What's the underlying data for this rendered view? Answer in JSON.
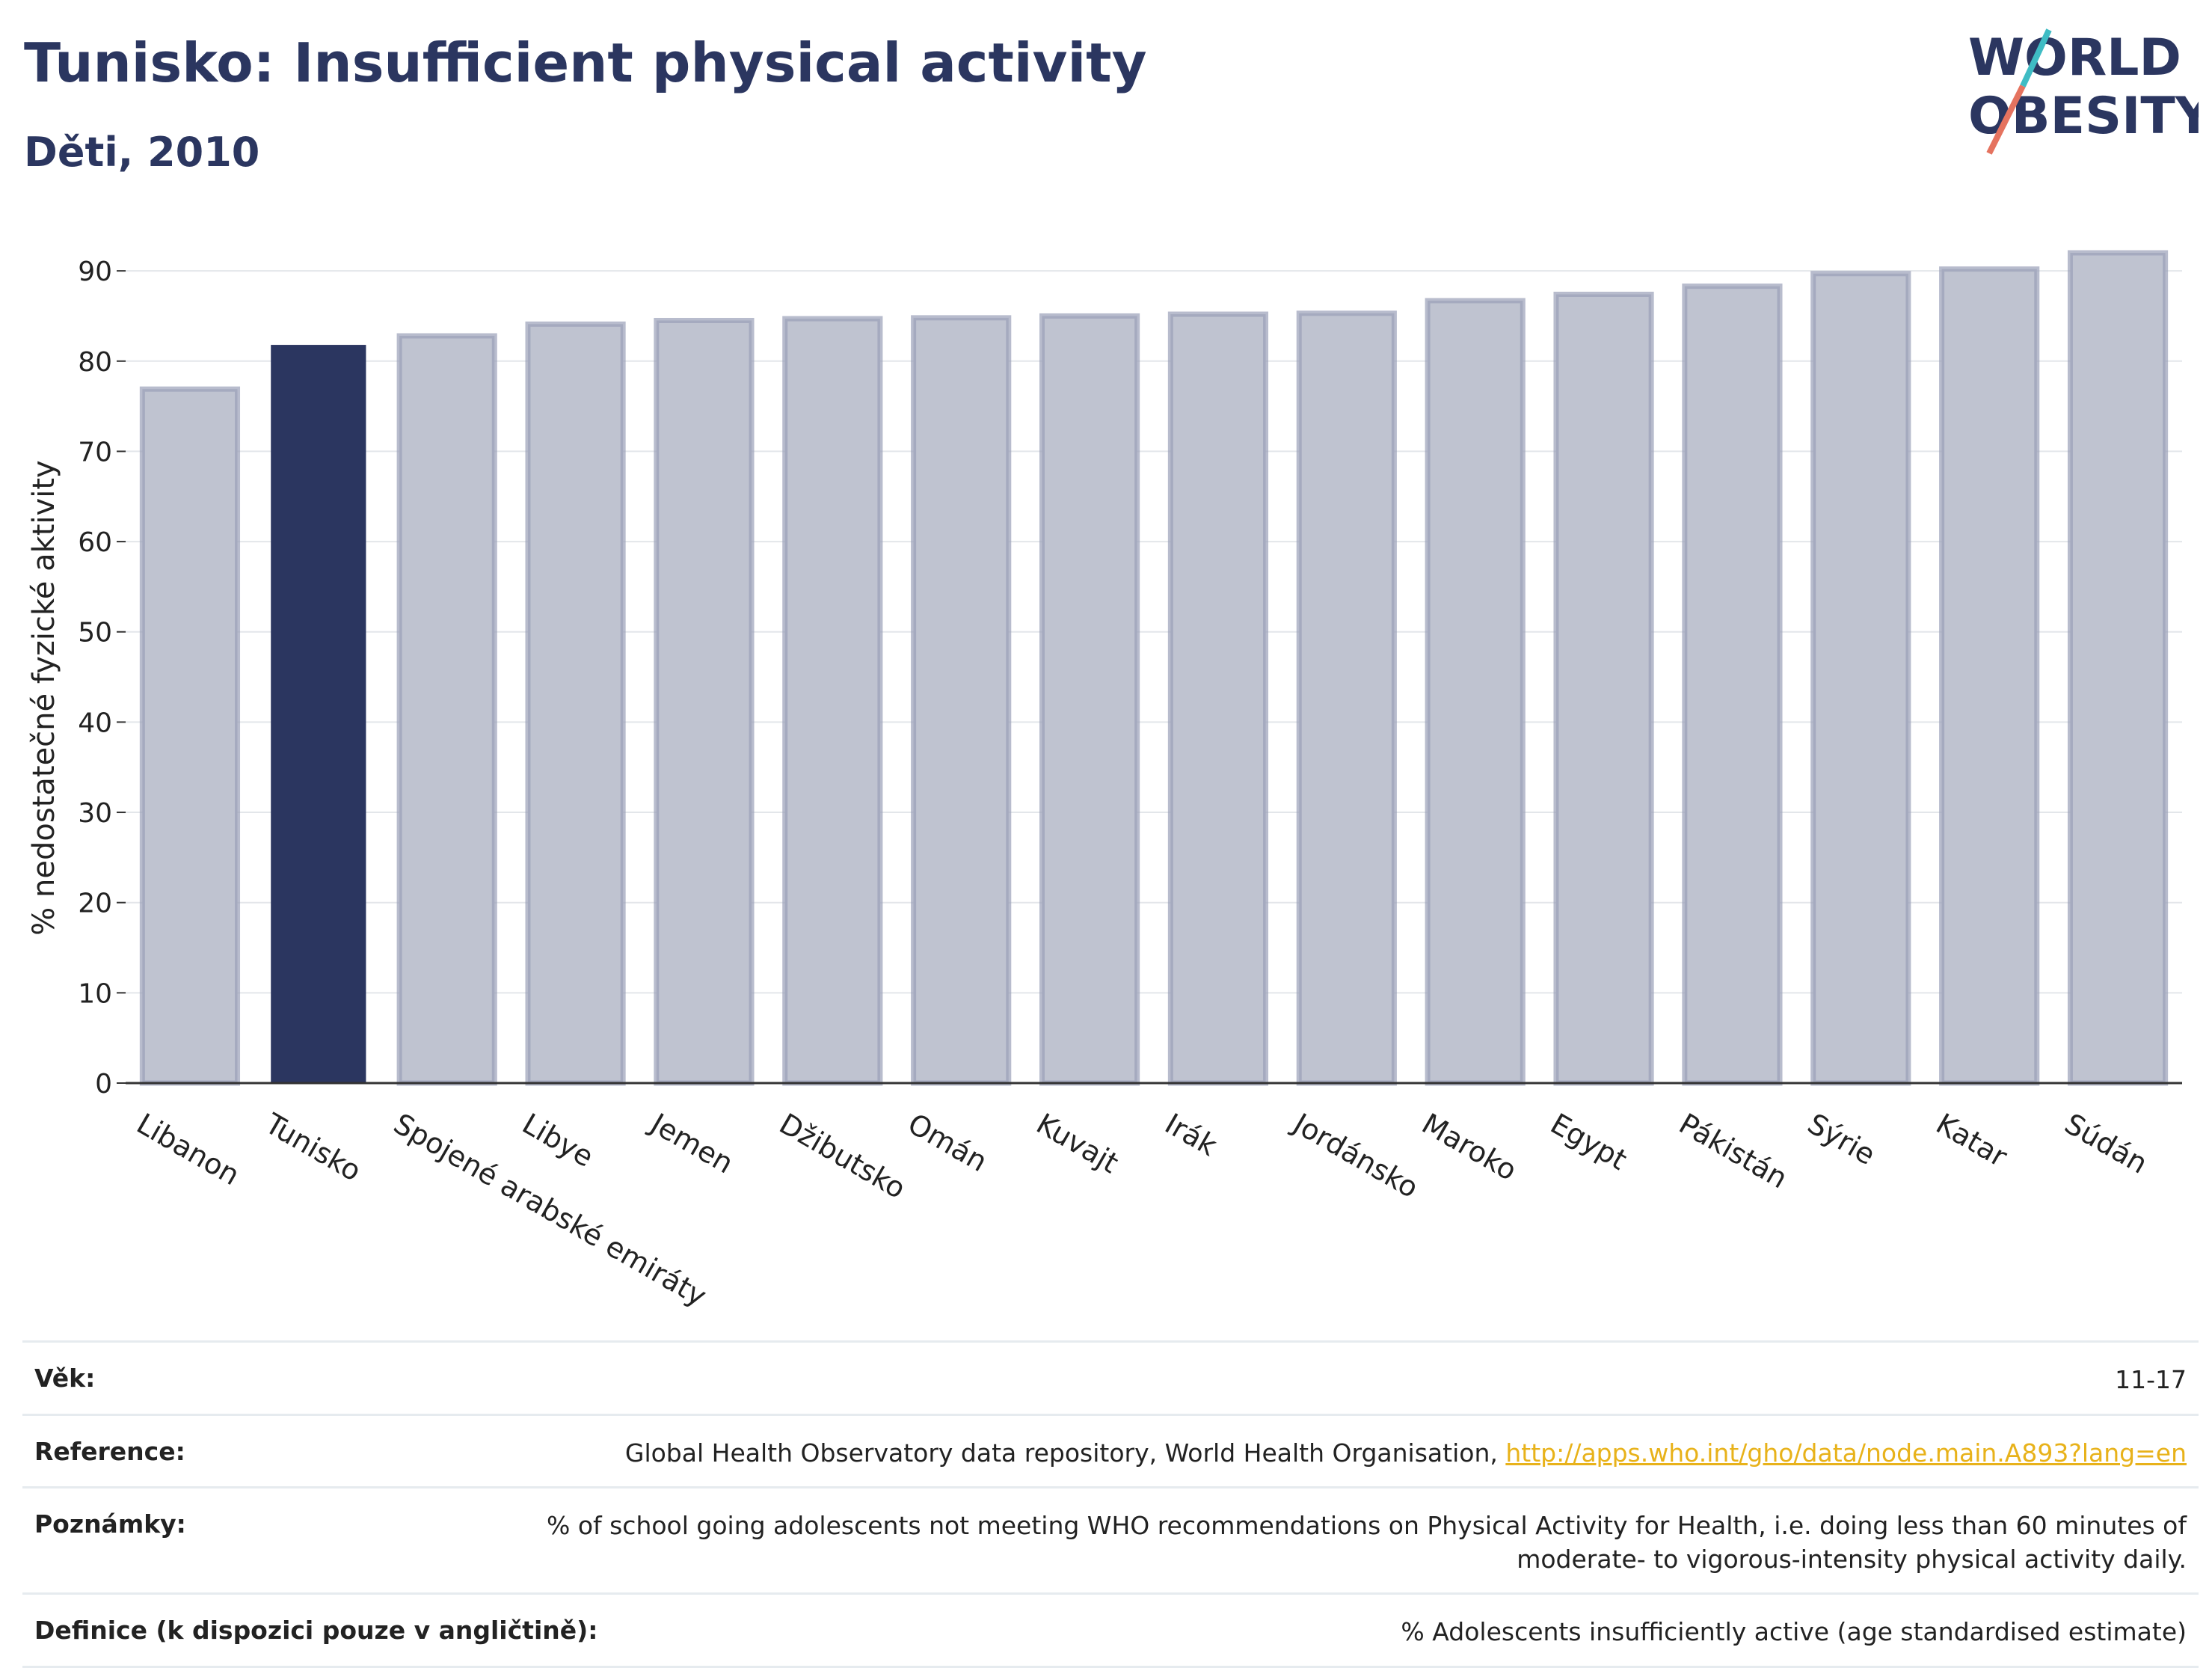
{
  "header": {
    "title": "Tunisko: Insufficient physical activity",
    "subtitle": "Děti, 2010"
  },
  "logo": {
    "line1": "WORLD",
    "line2": "OBESITY"
  },
  "chart_data": {
    "type": "bar",
    "ylabel": "% nedostatečné fyzické aktivity",
    "ylim": [
      0,
      92
    ],
    "yticks": [
      0,
      10,
      20,
      30,
      40,
      50,
      60,
      70,
      80,
      90
    ],
    "grid": true,
    "categories": [
      "Libanon",
      "Tunisko",
      "Spojené arabské emiráty",
      "Libye",
      "Jemen",
      "Džibutsko",
      "Omán",
      "Kuvajt",
      "Irák",
      "Jordánsko",
      "Maroko",
      "Egypt",
      "Pákistán",
      "Sýrie",
      "Katar",
      "Súdán"
    ],
    "values": [
      76.9,
      81.8,
      82.8,
      84.1,
      84.5,
      84.7,
      84.8,
      85.0,
      85.2,
      85.3,
      86.7,
      87.4,
      88.3,
      89.7,
      90.2,
      92.0
    ],
    "highlight": "Tunisko",
    "colors": {
      "bar": "#bfc3d0",
      "bar_border": "#9aa0b8",
      "highlight": "#2b3660"
    }
  },
  "meta": {
    "age_label": "Věk:",
    "age_value": "11-17",
    "reference_label": "Reference:",
    "reference_text": "Global Health Observatory data repository, World Health Organisation, ",
    "reference_link": "http://apps.who.int/gho/data/node.main.A893?lang=en",
    "notes_label": "Poznámky:",
    "notes_value": "% of school going adolescents not meeting WHO recommendations on Physical Activity for Health, i.e. doing less than 60 minutes of moderate- to vigorous-intensity physical activity daily.",
    "definition_label": "Definice (k dispozici pouze v angličtině):",
    "definition_value": "% Adolescents insufficiently active (age standardised estimate)"
  }
}
